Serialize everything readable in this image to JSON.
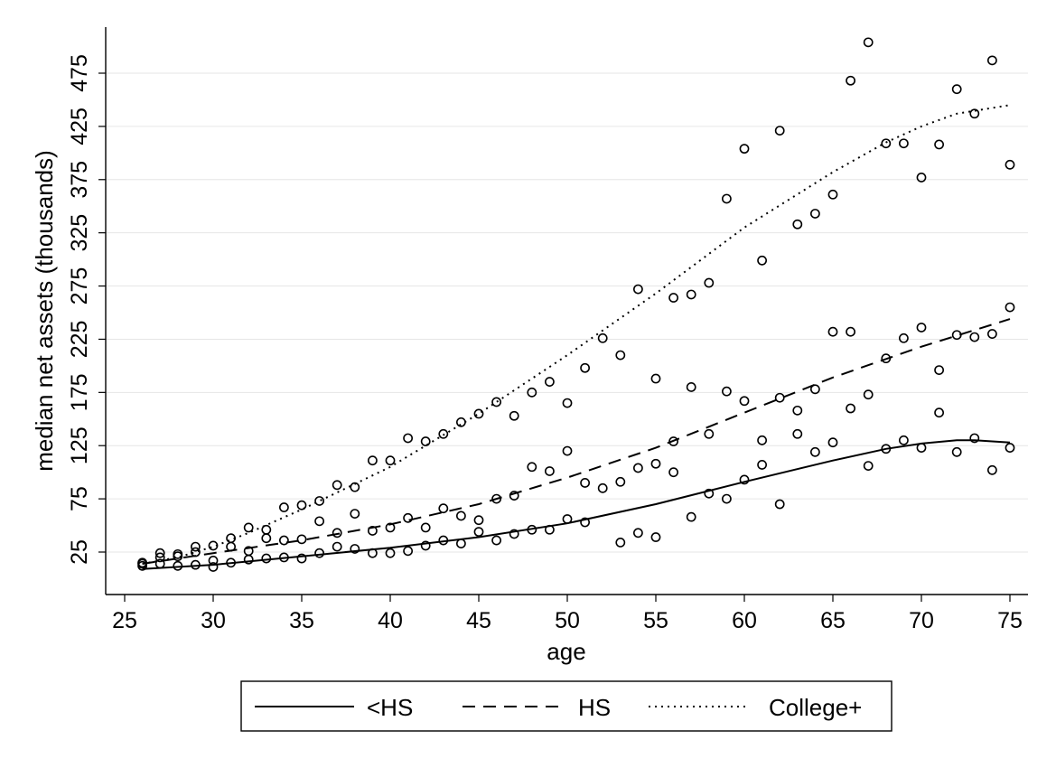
{
  "chart_data": {
    "type": "scatter",
    "xlabel": "age",
    "ylabel": "median net assets (thousands)",
    "xlim": [
      25,
      75
    ],
    "ylim": [
      -16,
      500
    ],
    "xticks": [
      25,
      30,
      35,
      40,
      45,
      50,
      55,
      60,
      65,
      70,
      75
    ],
    "yticks": [
      25,
      75,
      125,
      175,
      225,
      275,
      325,
      375,
      425,
      475
    ],
    "grid": true,
    "legend_position": "bottom",
    "series": [
      {
        "name": "<HS",
        "line_style": "solid",
        "points": [
          [
            26,
            12
          ],
          [
            27,
            14
          ],
          [
            28,
            12
          ],
          [
            29,
            13
          ],
          [
            30,
            11
          ],
          [
            30,
            17
          ],
          [
            31,
            15
          ],
          [
            32,
            18
          ],
          [
            33,
            19
          ],
          [
            34,
            20
          ],
          [
            35,
            19
          ],
          [
            36,
            24
          ],
          [
            37,
            30
          ],
          [
            38,
            28
          ],
          [
            39,
            24
          ],
          [
            40,
            24
          ],
          [
            41,
            26
          ],
          [
            42,
            31
          ],
          [
            43,
            36
          ],
          [
            44,
            33
          ],
          [
            45,
            44
          ],
          [
            46,
            36
          ],
          [
            47,
            42
          ],
          [
            48,
            46
          ],
          [
            49,
            46
          ],
          [
            50,
            56
          ],
          [
            51,
            53
          ],
          [
            53,
            34
          ],
          [
            54,
            43
          ],
          [
            55,
            39
          ],
          [
            56,
            100
          ],
          [
            57,
            58
          ],
          [
            58,
            80
          ],
          [
            59,
            75
          ],
          [
            60,
            93
          ],
          [
            61,
            107
          ],
          [
            62,
            70
          ],
          [
            63,
            136
          ],
          [
            64,
            119
          ],
          [
            65,
            128
          ],
          [
            66,
            160
          ],
          [
            67,
            106
          ],
          [
            68,
            122
          ],
          [
            69,
            130
          ],
          [
            70,
            123
          ],
          [
            71,
            156
          ],
          [
            72,
            119
          ],
          [
            73,
            132
          ],
          [
            74,
            102
          ],
          [
            75,
            123
          ]
        ],
        "fit": [
          [
            26,
            9
          ],
          [
            30,
            13
          ],
          [
            35,
            21
          ],
          [
            40,
            29
          ],
          [
            45,
            39
          ],
          [
            50,
            52
          ],
          [
            55,
            70
          ],
          [
            60,
            91
          ],
          [
            65,
            111
          ],
          [
            68,
            122
          ],
          [
            70,
            127
          ],
          [
            72,
            130
          ],
          [
            73,
            130
          ],
          [
            75,
            128
          ]
        ]
      },
      {
        "name": "HS",
        "line_style": "dashed",
        "points": [
          [
            26,
            14
          ],
          [
            27,
            20
          ],
          [
            28,
            21
          ],
          [
            29,
            25
          ],
          [
            31,
            30
          ],
          [
            32,
            26
          ],
          [
            33,
            38
          ],
          [
            34,
            36
          ],
          [
            35,
            37
          ],
          [
            36,
            54
          ],
          [
            37,
            43
          ],
          [
            38,
            61
          ],
          [
            39,
            45
          ],
          [
            40,
            48
          ],
          [
            41,
            57
          ],
          [
            42,
            48
          ],
          [
            43,
            66
          ],
          [
            44,
            59
          ],
          [
            45,
            55
          ],
          [
            46,
            75
          ],
          [
            47,
            78
          ],
          [
            48,
            105
          ],
          [
            49,
            101
          ],
          [
            50,
            120
          ],
          [
            51,
            90
          ],
          [
            52,
            85
          ],
          [
            53,
            91
          ],
          [
            54,
            104
          ],
          [
            55,
            108
          ],
          [
            56,
            129
          ],
          [
            57,
            180
          ],
          [
            58,
            136
          ],
          [
            59,
            176
          ],
          [
            60,
            167
          ],
          [
            61,
            130
          ],
          [
            62,
            170
          ],
          [
            63,
            158
          ],
          [
            64,
            178
          ],
          [
            65,
            232
          ],
          [
            66,
            232
          ],
          [
            67,
            173
          ],
          [
            68,
            207
          ],
          [
            69,
            226
          ],
          [
            70,
            236
          ],
          [
            71,
            196
          ],
          [
            72,
            229
          ],
          [
            73,
            227
          ],
          [
            74,
            230
          ],
          [
            75,
            255
          ]
        ],
        "fit": [
          [
            26,
            14
          ],
          [
            30,
            24
          ],
          [
            35,
            36
          ],
          [
            40,
            51
          ],
          [
            45,
            70
          ],
          [
            50,
            95
          ],
          [
            55,
            123
          ],
          [
            60,
            156
          ],
          [
            65,
            189
          ],
          [
            70,
            218
          ],
          [
            75,
            244
          ]
        ]
      },
      {
        "name": "College+",
        "line_style": "dotted",
        "points": [
          [
            26,
            15
          ],
          [
            27,
            24
          ],
          [
            28,
            23
          ],
          [
            29,
            30
          ],
          [
            30,
            31
          ],
          [
            31,
            38
          ],
          [
            32,
            48
          ],
          [
            33,
            46
          ],
          [
            34,
            67
          ],
          [
            35,
            69
          ],
          [
            36,
            73
          ],
          [
            37,
            88
          ],
          [
            38,
            86
          ],
          [
            39,
            111
          ],
          [
            40,
            111
          ],
          [
            41,
            132
          ],
          [
            42,
            129
          ],
          [
            43,
            136
          ],
          [
            44,
            147
          ],
          [
            45,
            155
          ],
          [
            46,
            166
          ],
          [
            47,
            153
          ],
          [
            48,
            175
          ],
          [
            49,
            185
          ],
          [
            50,
            165
          ],
          [
            51,
            198
          ],
          [
            52,
            226
          ],
          [
            53,
            210
          ],
          [
            54,
            272
          ],
          [
            55,
            188
          ],
          [
            56,
            264
          ],
          [
            57,
            267
          ],
          [
            58,
            278
          ],
          [
            59,
            357
          ],
          [
            60,
            404
          ],
          [
            61,
            299
          ],
          [
            62,
            421
          ],
          [
            63,
            333
          ],
          [
            64,
            343
          ],
          [
            65,
            361
          ],
          [
            66,
            468
          ],
          [
            67,
            504
          ],
          [
            68,
            409
          ],
          [
            69,
            409
          ],
          [
            70,
            377
          ],
          [
            71,
            408
          ],
          [
            72,
            460
          ],
          [
            73,
            437
          ],
          [
            74,
            487
          ],
          [
            75,
            389
          ]
        ],
        "fit": [
          [
            26,
            14
          ],
          [
            28,
            20
          ],
          [
            30,
            30
          ],
          [
            32,
            43
          ],
          [
            35,
            65
          ],
          [
            40,
            105
          ],
          [
            45,
            155
          ],
          [
            50,
            210
          ],
          [
            55,
            268
          ],
          [
            60,
            330
          ],
          [
            65,
            382
          ],
          [
            68,
            410
          ],
          [
            70,
            425
          ],
          [
            72,
            437
          ],
          [
            75,
            445
          ]
        ]
      }
    ]
  }
}
